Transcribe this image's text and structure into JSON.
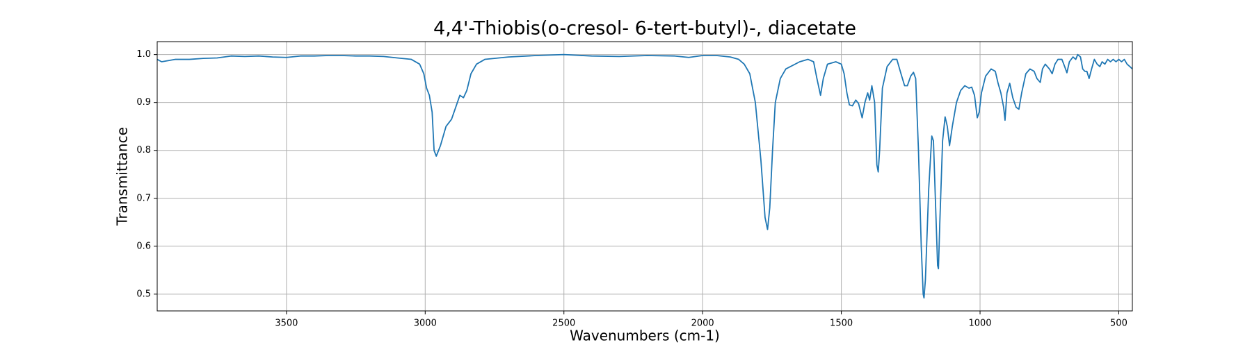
{
  "chart_data": {
    "type": "line",
    "title": "4,4'-Thiobis(o-cresol- 6-tert-butyl)-, diacetate",
    "x_label": "Wavenumbers (cm-1)",
    "y_label": "Transmittance",
    "xlim": [
      3966,
      451
    ],
    "ylim": [
      0.465,
      1.027
    ],
    "xticks": [
      3500,
      3000,
      2500,
      2000,
      1500,
      1000,
      500
    ],
    "yticks": [
      0.5,
      0.6,
      0.7,
      0.8,
      0.9,
      {
        "value": 1,
        "label": "1.0"
      }
    ],
    "grid": true,
    "x": [
      3966,
      3950,
      3900,
      3850,
      3800,
      3750,
      3700,
      3650,
      3600,
      3550,
      3500,
      3450,
      3400,
      3350,
      3300,
      3250,
      3200,
      3150,
      3100,
      3050,
      3020,
      3005,
      2995,
      2985,
      2975,
      2968,
      2960,
      2945,
      2925,
      2905,
      2890,
      2875,
      2862,
      2850,
      2835,
      2815,
      2785,
      2700,
      2600,
      2500,
      2400,
      2300,
      2200,
      2100,
      2050,
      2000,
      1950,
      1900,
      1870,
      1850,
      1830,
      1810,
      1790,
      1775,
      1766,
      1758,
      1748,
      1738,
      1720,
      1700,
      1650,
      1620,
      1600,
      1588,
      1575,
      1565,
      1550,
      1520,
      1500,
      1490,
      1480,
      1471,
      1460,
      1448,
      1438,
      1425,
      1415,
      1405,
      1398,
      1390,
      1380,
      1372,
      1367,
      1362,
      1352,
      1335,
      1315,
      1300,
      1285,
      1272,
      1262,
      1250,
      1240,
      1232,
      1222,
      1212,
      1205,
      1202,
      1197,
      1185,
      1174,
      1168,
      1160,
      1153,
      1150,
      1145,
      1135,
      1126,
      1118,
      1110,
      1100,
      1085,
      1070,
      1055,
      1040,
      1030,
      1020,
      1010,
      1003,
      995,
      980,
      960,
      945,
      935,
      925,
      915,
      910,
      903,
      893,
      882,
      870,
      860,
      850,
      835,
      820,
      805,
      795,
      783,
      775,
      765,
      750,
      740,
      730,
      719,
      705,
      695,
      687,
      678,
      665,
      655,
      648,
      638,
      630,
      622,
      615,
      607,
      598,
      588,
      578,
      568,
      560,
      550,
      540,
      530,
      520,
      510,
      500,
      490,
      480,
      470,
      460,
      451
    ],
    "series": [
      {
        "name": "Transmittance",
        "color": "#1f77b4",
        "values": [
          0.99,
          0.985,
          0.99,
          0.99,
          0.992,
          0.993,
          0.997,
          0.996,
          0.997,
          0.995,
          0.994,
          0.997,
          0.997,
          0.998,
          0.998,
          0.997,
          0.997,
          0.996,
          0.993,
          0.99,
          0.98,
          0.96,
          0.93,
          0.915,
          0.88,
          0.8,
          0.788,
          0.81,
          0.85,
          0.865,
          0.89,
          0.915,
          0.91,
          0.925,
          0.96,
          0.98,
          0.99,
          0.995,
          0.998,
          1.0,
          0.997,
          0.996,
          0.998,
          0.997,
          0.994,
          0.998,
          0.998,
          0.995,
          0.99,
          0.98,
          0.96,
          0.9,
          0.78,
          0.66,
          0.635,
          0.68,
          0.8,
          0.9,
          0.95,
          0.97,
          0.985,
          0.99,
          0.985,
          0.95,
          0.915,
          0.95,
          0.98,
          0.985,
          0.98,
          0.96,
          0.92,
          0.895,
          0.893,
          0.905,
          0.898,
          0.868,
          0.9,
          0.92,
          0.905,
          0.935,
          0.9,
          0.77,
          0.755,
          0.8,
          0.93,
          0.975,
          0.99,
          0.99,
          0.96,
          0.935,
          0.935,
          0.955,
          0.963,
          0.95,
          0.8,
          0.6,
          0.5,
          0.492,
          0.53,
          0.72,
          0.83,
          0.82,
          0.68,
          0.56,
          0.553,
          0.65,
          0.82,
          0.87,
          0.85,
          0.81,
          0.85,
          0.9,
          0.925,
          0.935,
          0.93,
          0.932,
          0.915,
          0.868,
          0.88,
          0.92,
          0.955,
          0.97,
          0.965,
          0.94,
          0.92,
          0.89,
          0.863,
          0.92,
          0.94,
          0.91,
          0.89,
          0.886,
          0.92,
          0.96,
          0.97,
          0.965,
          0.95,
          0.942,
          0.97,
          0.98,
          0.97,
          0.96,
          0.98,
          0.99,
          0.99,
          0.975,
          0.962,
          0.985,
          0.995,
          0.99,
          1.0,
          0.995,
          0.97,
          0.965,
          0.965,
          0.95,
          0.97,
          0.99,
          0.98,
          0.975,
          0.985,
          0.98,
          0.99,
          0.985,
          0.99,
          0.985,
          0.99,
          0.985,
          0.99,
          0.98,
          0.975,
          0.97
        ]
      }
    ]
  }
}
